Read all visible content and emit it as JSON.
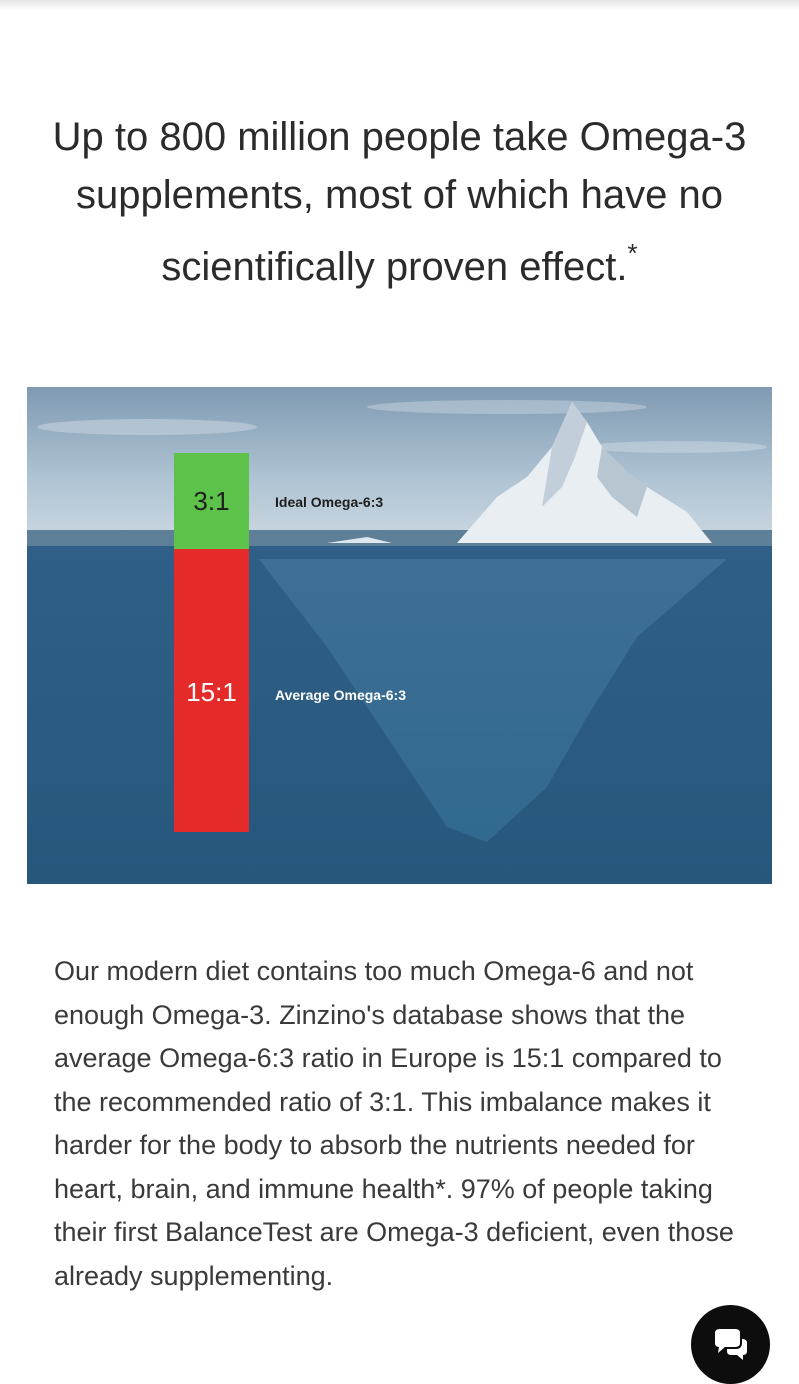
{
  "headline": {
    "text": "Up to 800 million people take Omega-3 supplements, most of which have no scientifically proven effect.",
    "footnote_mark": "*"
  },
  "hero": {
    "ideal_ratio": "3:1",
    "ideal_label": "Ideal Omega-6:3",
    "average_ratio": "15:1",
    "average_label": "Average Omega-6:3",
    "colors": {
      "ideal": "#5cc24a",
      "average": "#e52a2a",
      "sea": "#2e5a7e",
      "sky": "#9fb8cc"
    }
  },
  "body": {
    "paragraph": "Our modern diet contains too much Omega-6 and not enough Omega-3. Zinzino's database shows that the average Omega-6:3 ratio in Europe is 15:1 compared to the recommended ratio of 3:1. This imbalance makes it harder for the body to absorb the nutrients needed for heart, brain, and immune health*. 97% of people taking their first BalanceTest are Omega-3 deficient, even those already supplementing."
  },
  "chat": {
    "icon": "chat-bubbles-icon"
  }
}
